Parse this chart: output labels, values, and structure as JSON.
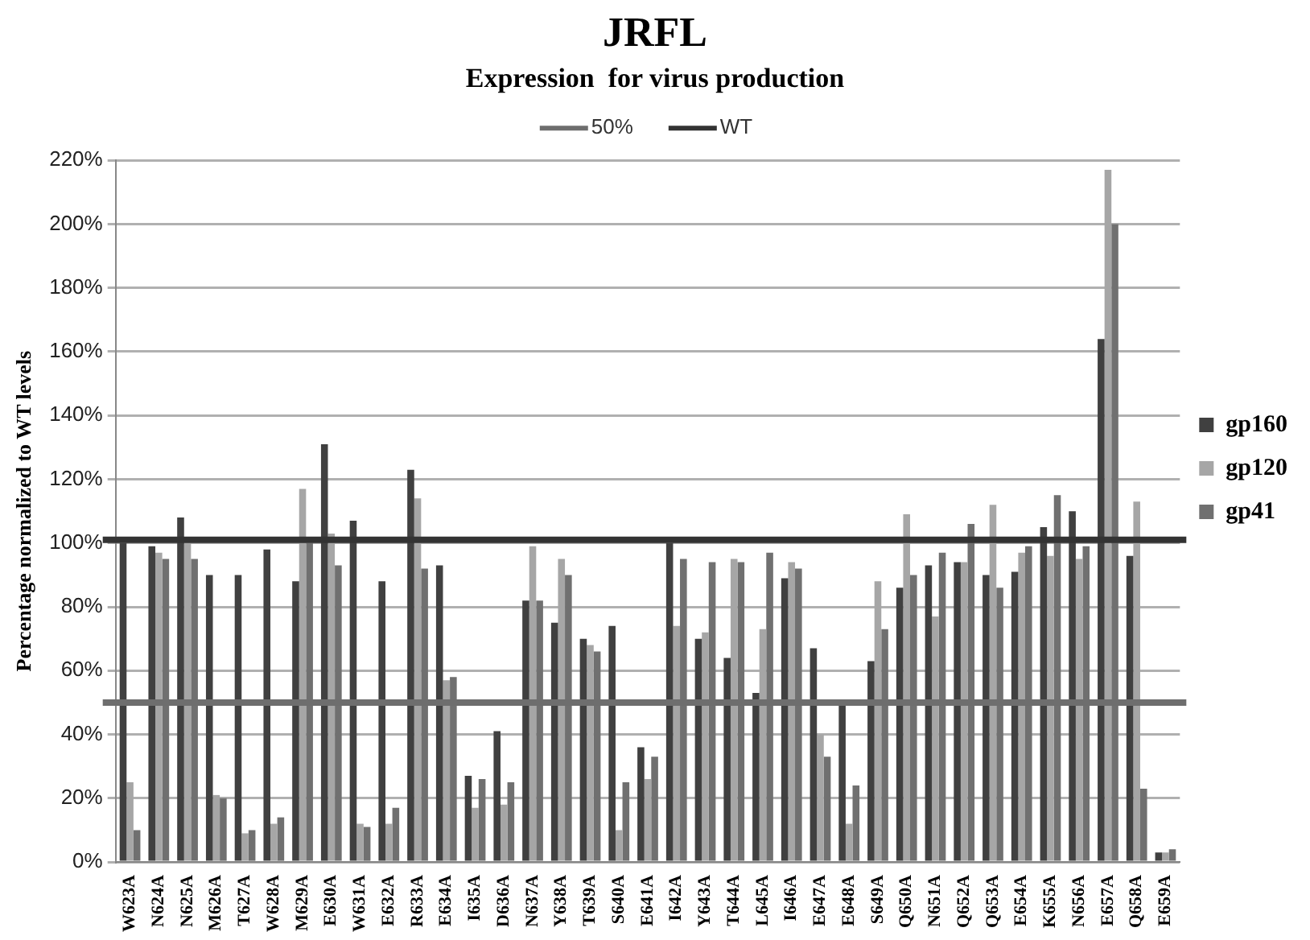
{
  "chart_data": {
    "type": "bar",
    "title": "JRFL",
    "subtitle": "Expression  for virus production",
    "ylabel": "Percentage normalized to WT levels",
    "categories": [
      "W623A",
      "N624A",
      "N625A",
      "M626A",
      "T627A",
      "W628A",
      "M629A",
      "E630A",
      "W631A",
      "E632A",
      "R633A",
      "E634A",
      "I635A",
      "D636A",
      "N637A",
      "Y638A",
      "T639A",
      "S640A",
      "E641A",
      "I642A",
      "Y643A",
      "T644A",
      "L645A",
      "I646A",
      "E647A",
      "E648A",
      "S649A",
      "Q650A",
      "N651A",
      "Q652A",
      "Q653A",
      "E654A",
      "K655A",
      "N656A",
      "E657A",
      "Q658A",
      "E659A"
    ],
    "series": [
      {
        "name": "gp160",
        "color": "#404040",
        "values": [
          100,
          99,
          108,
          90,
          90,
          98,
          88,
          131,
          107,
          88,
          123,
          93,
          27,
          41,
          82,
          75,
          70,
          74,
          36,
          100,
          70,
          64,
          53,
          89,
          67,
          49,
          63,
          86,
          93,
          94,
          90,
          91,
          105,
          110,
          164,
          96,
          3
        ]
      },
      {
        "name": "gp120",
        "color": "#a6a6a6",
        "values": [
          25,
          97,
          100,
          21,
          9,
          12,
          117,
          103,
          12,
          12,
          114,
          57,
          17,
          18,
          99,
          95,
          68,
          10,
          26,
          74,
          72,
          95,
          73,
          94,
          40,
          12,
          88,
          109,
          77,
          94,
          112,
          97,
          96,
          95,
          217,
          113,
          3
        ]
      },
      {
        "name": "gp41",
        "color": "#707070",
        "values": [
          10,
          95,
          95,
          20,
          10,
          14,
          100,
          93,
          11,
          17,
          92,
          58,
          26,
          25,
          82,
          90,
          66,
          25,
          33,
          95,
          94,
          94,
          97,
          92,
          33,
          24,
          73,
          90,
          97,
          106,
          86,
          99,
          115,
          99,
          200,
          23,
          4
        ]
      }
    ],
    "ylim": [
      0,
      220
    ],
    "yticks": [
      {
        "value": 0,
        "label": "0%"
      },
      {
        "value": 20,
        "label": "20%"
      },
      {
        "value": 40,
        "label": "40%"
      },
      {
        "value": 60,
        "label": "60%"
      },
      {
        "value": 80,
        "label": "80%"
      },
      {
        "value": 100,
        "label": "100%"
      },
      {
        "value": 120,
        "label": "120%"
      },
      {
        "value": 140,
        "label": "140%"
      },
      {
        "value": 160,
        "label": "160%"
      },
      {
        "value": 180,
        "label": "180%"
      },
      {
        "value": 200,
        "label": "200%"
      },
      {
        "value": 220,
        "label": "220%"
      }
    ],
    "ref_lines": [
      {
        "axis": "y",
        "value": 50,
        "label": "50%",
        "color": "#6e6e6e"
      },
      {
        "axis": "y",
        "value": 101,
        "label": "WT",
        "color": "#333333"
      }
    ],
    "grid": "y",
    "legend": "right"
  }
}
